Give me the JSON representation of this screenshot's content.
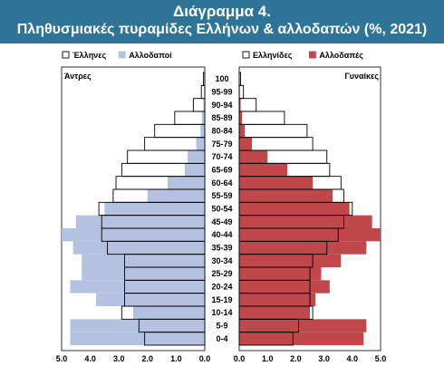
{
  "header": {
    "title": "Διάγραμμα 4.",
    "subtitle": "Πληθυσμιακές πυραμίδες Ελλήνων & αλλοδαπών (%, 2021)",
    "background_color": "#2e7497"
  },
  "chart_data": {
    "type": "bar",
    "subtype": "population-pyramid",
    "age_groups": [
      "100",
      "95-99",
      "90-94",
      "85-89",
      "80-84",
      "75-79",
      "70-74",
      "65-69",
      "60-64",
      "55-59",
      "50-54",
      "45-49",
      "40-44",
      "35-39",
      "30-34",
      "25-29",
      "20-24",
      "15-19",
      "10-14",
      "5-9",
      "0-4"
    ],
    "panels": [
      {
        "side": "left",
        "panel_label": "Άντρες",
        "xlim": [
          0,
          5
        ],
        "tick_labels": [
          "5.0",
          "4.0",
          "3.0",
          "2.0",
          "1.0",
          "0.0"
        ],
        "series": [
          {
            "name": "Έλληνες",
            "legend_label": "Έλληνες",
            "color": "#ffffff",
            "stroke": "#000000",
            "values": [
              0.05,
              0.12,
              0.4,
              1.05,
              1.75,
              2.1,
              2.7,
              2.9,
              3.1,
              3.2,
              3.7,
              3.6,
              3.6,
              3.4,
              2.8,
              2.8,
              2.8,
              2.8,
              2.9,
              2.3,
              2.1
            ]
          },
          {
            "name": "Αλλοδαποί",
            "legend_label": "Αλλοδαποί",
            "color": "#b4c2e0",
            "stroke": "#b4c2e0",
            "values": [
              0.0,
              0.02,
              0.05,
              0.1,
              0.15,
              0.3,
              0.6,
              0.7,
              1.3,
              2.0,
              3.5,
              4.5,
              5.0,
              4.6,
              4.3,
              4.3,
              4.7,
              3.8,
              2.5,
              4.7,
              4.7
            ]
          }
        ]
      },
      {
        "side": "right",
        "panel_label": "Γυναίκες",
        "xlim": [
          0,
          5
        ],
        "tick_labels": [
          "0.0",
          "1.0",
          "2.0",
          "3.0",
          "4.0",
          "5.0"
        ],
        "series": [
          {
            "name": "Ελληνίδες",
            "legend_label": "Ελληνίδες",
            "color": "#ffffff",
            "stroke": "#000000",
            "values": [
              0.05,
              0.15,
              0.6,
              1.6,
              2.4,
              2.6,
              3.1,
              3.2,
              3.6,
              3.7,
              4.0,
              3.7,
              3.5,
              3.1,
              2.6,
              2.5,
              2.5,
              2.5,
              2.6,
              2.1,
              1.9
            ]
          },
          {
            "name": "Αλλοδαπές",
            "legend_label": "Αλλοδαπές",
            "color": "#c0474a",
            "stroke": "#c0474a",
            "values": [
              0.0,
              0.02,
              0.05,
              0.1,
              0.2,
              0.45,
              1.0,
              1.7,
              2.6,
              3.3,
              3.9,
              4.7,
              5.0,
              4.5,
              3.6,
              2.9,
              3.2,
              2.7,
              2.5,
              4.5,
              4.4
            ]
          }
        ]
      }
    ]
  }
}
